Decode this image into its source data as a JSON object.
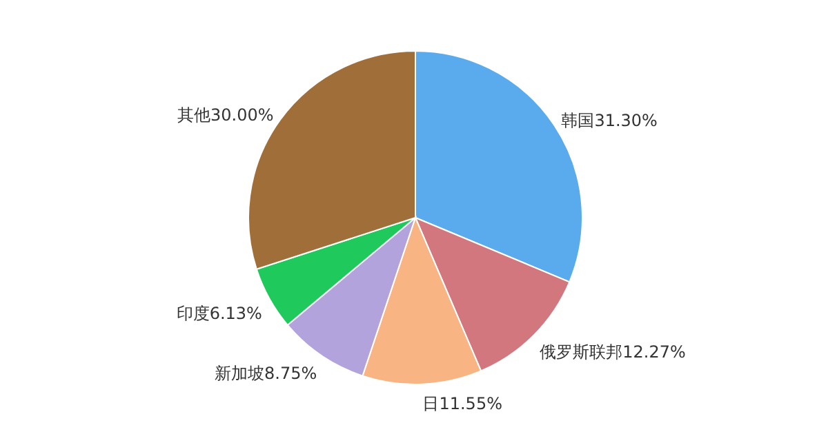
{
  "chart_data": {
    "type": "pie",
    "categories": [
      "韩国",
      "俄罗斯联邦",
      "日",
      "新加坡",
      "印度",
      "其他"
    ],
    "values": [
      31.3,
      12.27,
      11.55,
      8.75,
      6.13,
      30.0
    ],
    "value_labels": [
      "31.30%",
      "12.27%",
      "11.55%",
      "8.75%",
      "6.13%",
      "30.00%"
    ],
    "colors": [
      "#5aaaee",
      "#d3777f",
      "#f8b483",
      "#b3a3dd",
      "#20c95b",
      "#a06f39"
    ]
  }
}
